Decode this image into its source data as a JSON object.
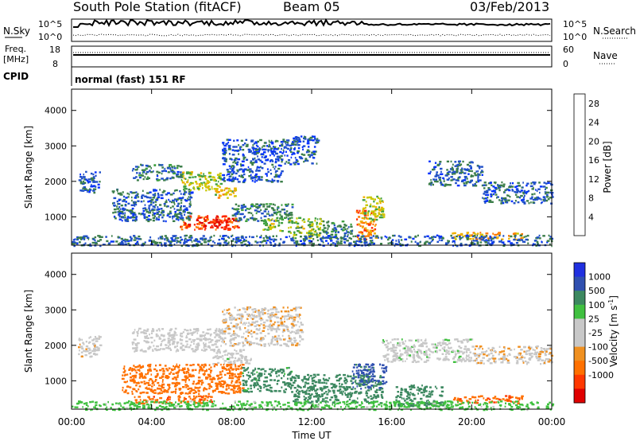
{
  "header": {
    "station": "South Pole Station (fitACF)",
    "beam": "Beam 05",
    "date": "03/Feb/2013"
  },
  "summary": {
    "nsky_label": "N.Sky",
    "nsky_ticks": [
      "10^5",
      "10^0"
    ],
    "nsearch_label": "N.Search",
    "nsearch_ticks": [
      "10^5",
      "10^0"
    ],
    "freq_label_1": "Freq.",
    "freq_label_2": "[MHz]",
    "freq_ticks": [
      "18",
      "8"
    ],
    "nave_label": "Nave",
    "nave_ticks": [
      "60",
      "0"
    ],
    "cpid_label": "CPID",
    "cpid_text": "normal (fast) 151 RF"
  },
  "colors": {
    "power": [
      "#0030ff",
      "#2050c8",
      "#3c7e4a",
      "#40a040",
      "#c8c800",
      "#f0b000",
      "#ff7800",
      "#ff2800",
      "#e00000"
    ],
    "velocity": [
      "#e00000",
      "#ff3800",
      "#ff7000",
      "#f09020",
      "#c8c8c8",
      "#c8c8c8",
      "#40c040",
      "#3c8860",
      "#3050b0",
      "#2030e0"
    ]
  },
  "chart_data": [
    {
      "type": "heatmap",
      "title": "",
      "xlabel": "Time UT",
      "ylabel": "Slant Range [km]",
      "xlim_hours": [
        0,
        24
      ],
      "ylim": [
        200,
        4600
      ],
      "x_ticks": [
        "00:00",
        "04:00",
        "08:00",
        "12:00",
        "16:00",
        "20:00",
        "00:00"
      ],
      "y_ticks": [
        "1000",
        "2000",
        "3000",
        "4000"
      ],
      "colorbar": {
        "label": "Power [dB]",
        "ticks": [
          "4",
          "8",
          "12",
          "16",
          "20",
          "24",
          "28"
        ],
        "range": [
          0,
          30
        ]
      },
      "echo_regions": [
        {
          "t0": 0.3,
          "t1": 1.4,
          "r0": 1700,
          "r1": 2300,
          "value": 5
        },
        {
          "t0": 3.0,
          "t1": 5.5,
          "r0": 2050,
          "r1": 2500,
          "value": 7
        },
        {
          "t0": 5.5,
          "t1": 7.5,
          "r0": 1750,
          "r1": 2300,
          "value": 14
        },
        {
          "t0": 7.0,
          "t1": 8.2,
          "r0": 1550,
          "r1": 1850,
          "value": 17
        },
        {
          "t0": 5.3,
          "t1": 8.3,
          "r0": 650,
          "r1": 1050,
          "value": 24
        },
        {
          "t0": 6.2,
          "t1": 7.8,
          "r0": 700,
          "r1": 950,
          "value": 27
        },
        {
          "t0": 2.0,
          "t1": 6.0,
          "r0": 900,
          "r1": 1800,
          "value": 6
        },
        {
          "t0": 8.0,
          "t1": 11.0,
          "r0": 900,
          "r1": 1400,
          "value": 8
        },
        {
          "t0": 9.5,
          "t1": 10.5,
          "r0": 600,
          "r1": 1000,
          "value": 14
        },
        {
          "t0": 10.8,
          "t1": 12.5,
          "r0": 400,
          "r1": 1000,
          "value": 13
        },
        {
          "t0": 12.5,
          "t1": 14.0,
          "r0": 400,
          "r1": 900,
          "value": 9
        },
        {
          "t0": 14.2,
          "t1": 15.2,
          "r0": 350,
          "r1": 1200,
          "value": 21
        },
        {
          "t0": 14.5,
          "t1": 15.6,
          "r0": 900,
          "r1": 1600,
          "value": 15
        },
        {
          "t0": 7.5,
          "t1": 10.5,
          "r0": 2000,
          "r1": 3200,
          "value": 5
        },
        {
          "t0": 10.5,
          "t1": 12.3,
          "r0": 2500,
          "r1": 3300,
          "value": 5
        },
        {
          "t0": 17.8,
          "t1": 20.5,
          "r0": 1900,
          "r1": 2600,
          "value": 6
        },
        {
          "t0": 20.5,
          "t1": 24.0,
          "r0": 1400,
          "r1": 2000,
          "value": 6
        },
        {
          "t0": 19.0,
          "t1": 22.5,
          "r0": 380,
          "r1": 580,
          "value": 19
        },
        {
          "t0": 0.0,
          "t1": 24.0,
          "r0": 200,
          "r1": 500,
          "value": 6
        }
      ]
    },
    {
      "type": "heatmap",
      "title": "",
      "xlabel": "Time UT",
      "ylabel": "Slant Range [km]",
      "xlim_hours": [
        0,
        24
      ],
      "ylim": [
        200,
        4600
      ],
      "x_ticks": [
        "00:00",
        "04:00",
        "08:00",
        "12:00",
        "16:00",
        "20:00",
        "00:00"
      ],
      "y_ticks": [
        "1000",
        "2000",
        "3000",
        "4000"
      ],
      "colorbar": {
        "label": "Velocity [m s",
        "label_sup": "-1",
        "label_end": "]",
        "ticks": [
          "1000",
          "500",
          "100",
          "25",
          "-25",
          "-100",
          "-500",
          "-1000"
        ]
      },
      "echo_regions": [
        {
          "t0": 0.3,
          "t1": 1.4,
          "r0": 1700,
          "r1": 2300,
          "value": -10
        },
        {
          "t0": 3.0,
          "t1": 7.5,
          "r0": 1850,
          "r1": 2500,
          "value": 0
        },
        {
          "t0": 7.0,
          "t1": 9.0,
          "r0": 1500,
          "r1": 1900,
          "value": 5
        },
        {
          "t0": 2.5,
          "t1": 8.5,
          "r0": 650,
          "r1": 1500,
          "value": -300
        },
        {
          "t0": 3.0,
          "t1": 7.0,
          "r0": 380,
          "r1": 600,
          "value": -400
        },
        {
          "t0": 8.5,
          "t1": 11.0,
          "r0": 700,
          "r1": 1400,
          "value": 150
        },
        {
          "t0": 11.0,
          "t1": 15.5,
          "r0": 400,
          "r1": 1200,
          "value": 300
        },
        {
          "t0": 14.0,
          "t1": 15.7,
          "r0": 800,
          "r1": 1500,
          "value": 700
        },
        {
          "t0": 7.5,
          "t1": 11.5,
          "r0": 2000,
          "r1": 3100,
          "value": -15
        },
        {
          "t0": 15.5,
          "t1": 20.0,
          "r0": 1550,
          "r1": 2200,
          "value": 10
        },
        {
          "t0": 20.0,
          "t1": 24.0,
          "r0": 1500,
          "r1": 2000,
          "value": -15
        },
        {
          "t0": 19.0,
          "t1": 22.5,
          "r0": 380,
          "r1": 600,
          "value": -400
        },
        {
          "t0": 16.0,
          "t1": 18.5,
          "r0": 300,
          "r1": 900,
          "value": 200
        },
        {
          "t0": 0.0,
          "t1": 24.0,
          "r0": 200,
          "r1": 450,
          "value": 50
        }
      ]
    }
  ]
}
